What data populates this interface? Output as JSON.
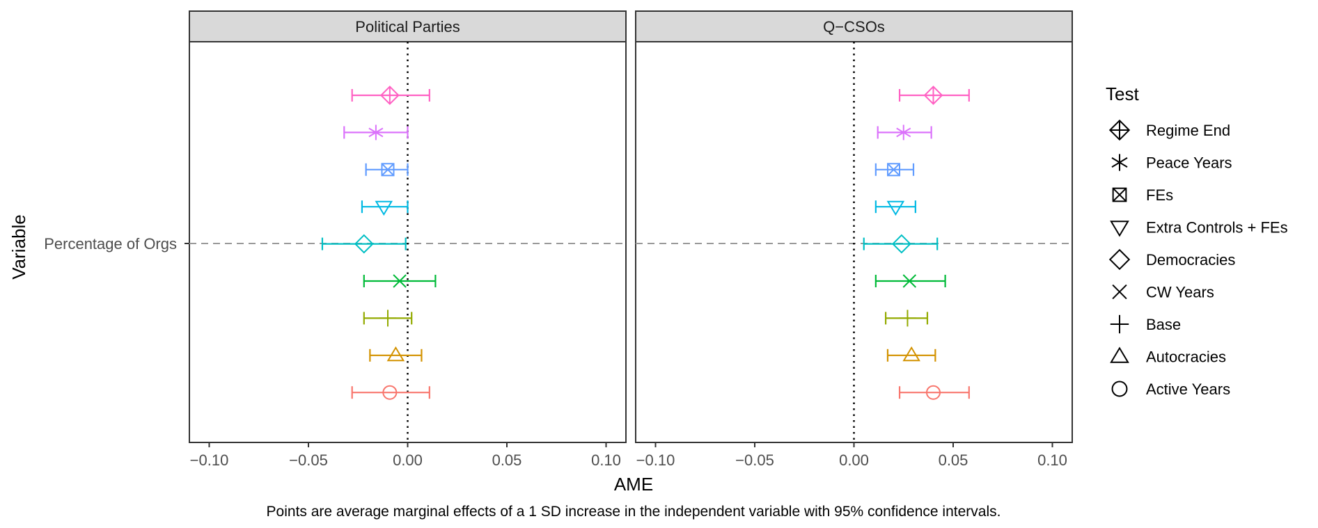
{
  "chart_data": {
    "type": "scatter",
    "subtype": "coefficient-plot-with-error-bars",
    "xlabel": "AME",
    "ylabel": "Variable",
    "caption": "Points are average marginal effects of a 1 SD increase in the independent variable with 95% confidence intervals.",
    "y_categories": [
      "Percentage of Orgs"
    ],
    "xlim": [
      -0.11,
      0.11
    ],
    "x_ticks": [
      -0.1,
      -0.05,
      0.0,
      0.05,
      0.1
    ],
    "x_tick_labels": [
      "−0.10",
      "−0.05",
      "0.00",
      "0.05",
      "0.10"
    ],
    "reference_line_x": 0,
    "grid": false,
    "legend": {
      "title": "Test",
      "position": "right",
      "items": [
        {
          "label": "Regime End",
          "shape": "diamond-plus",
          "color": "#FF61C3"
        },
        {
          "label": "Peace Years",
          "shape": "asterisk",
          "color": "#DB72FB"
        },
        {
          "label": "FEs",
          "shape": "square-cross",
          "color": "#619CFF"
        },
        {
          "label": "Extra Controls + FEs",
          "shape": "triangle-down",
          "color": "#00B9E3"
        },
        {
          "label": "Democracies",
          "shape": "diamond",
          "color": "#00BFC4"
        },
        {
          "label": "CW Years",
          "shape": "cross",
          "color": "#00BA38"
        },
        {
          "label": "Base",
          "shape": "plus",
          "color": "#93AA00"
        },
        {
          "label": "Autocracies",
          "shape": "triangle-up",
          "color": "#D39200"
        },
        {
          "label": "Active Years",
          "shape": "circle",
          "color": "#F8766D"
        }
      ]
    },
    "panels": [
      {
        "title": "Political Parties",
        "series": [
          {
            "name": "Regime End",
            "x": -0.009,
            "lo": -0.028,
            "hi": 0.011
          },
          {
            "name": "Peace Years",
            "x": -0.016,
            "lo": -0.032,
            "hi": 0.0
          },
          {
            "name": "FEs",
            "x": -0.01,
            "lo": -0.021,
            "hi": 0.0
          },
          {
            "name": "Extra Controls + FEs",
            "x": -0.012,
            "lo": -0.023,
            "hi": 0.0
          },
          {
            "name": "Democracies",
            "x": -0.022,
            "lo": -0.043,
            "hi": -0.001
          },
          {
            "name": "CW Years",
            "x": -0.004,
            "lo": -0.022,
            "hi": 0.014
          },
          {
            "name": "Base",
            "x": -0.01,
            "lo": -0.022,
            "hi": 0.002
          },
          {
            "name": "Autocracies",
            "x": -0.006,
            "lo": -0.019,
            "hi": 0.007
          },
          {
            "name": "Active Years",
            "x": -0.009,
            "lo": -0.028,
            "hi": 0.011
          }
        ]
      },
      {
        "title": "Q−CSOs",
        "series": [
          {
            "name": "Regime End",
            "x": 0.04,
            "lo": 0.023,
            "hi": 0.058
          },
          {
            "name": "Peace Years",
            "x": 0.025,
            "lo": 0.012,
            "hi": 0.039
          },
          {
            "name": "FEs",
            "x": 0.02,
            "lo": 0.011,
            "hi": 0.03
          },
          {
            "name": "Extra Controls + FEs",
            "x": 0.021,
            "lo": 0.011,
            "hi": 0.031
          },
          {
            "name": "Democracies",
            "x": 0.024,
            "lo": 0.005,
            "hi": 0.042
          },
          {
            "name": "CW Years",
            "x": 0.028,
            "lo": 0.011,
            "hi": 0.046
          },
          {
            "name": "Base",
            "x": 0.027,
            "lo": 0.016,
            "hi": 0.037
          },
          {
            "name": "Autocracies",
            "x": 0.029,
            "lo": 0.017,
            "hi": 0.041
          },
          {
            "name": "Active Years",
            "x": 0.04,
            "lo": 0.023,
            "hi": 0.058
          }
        ]
      }
    ]
  }
}
